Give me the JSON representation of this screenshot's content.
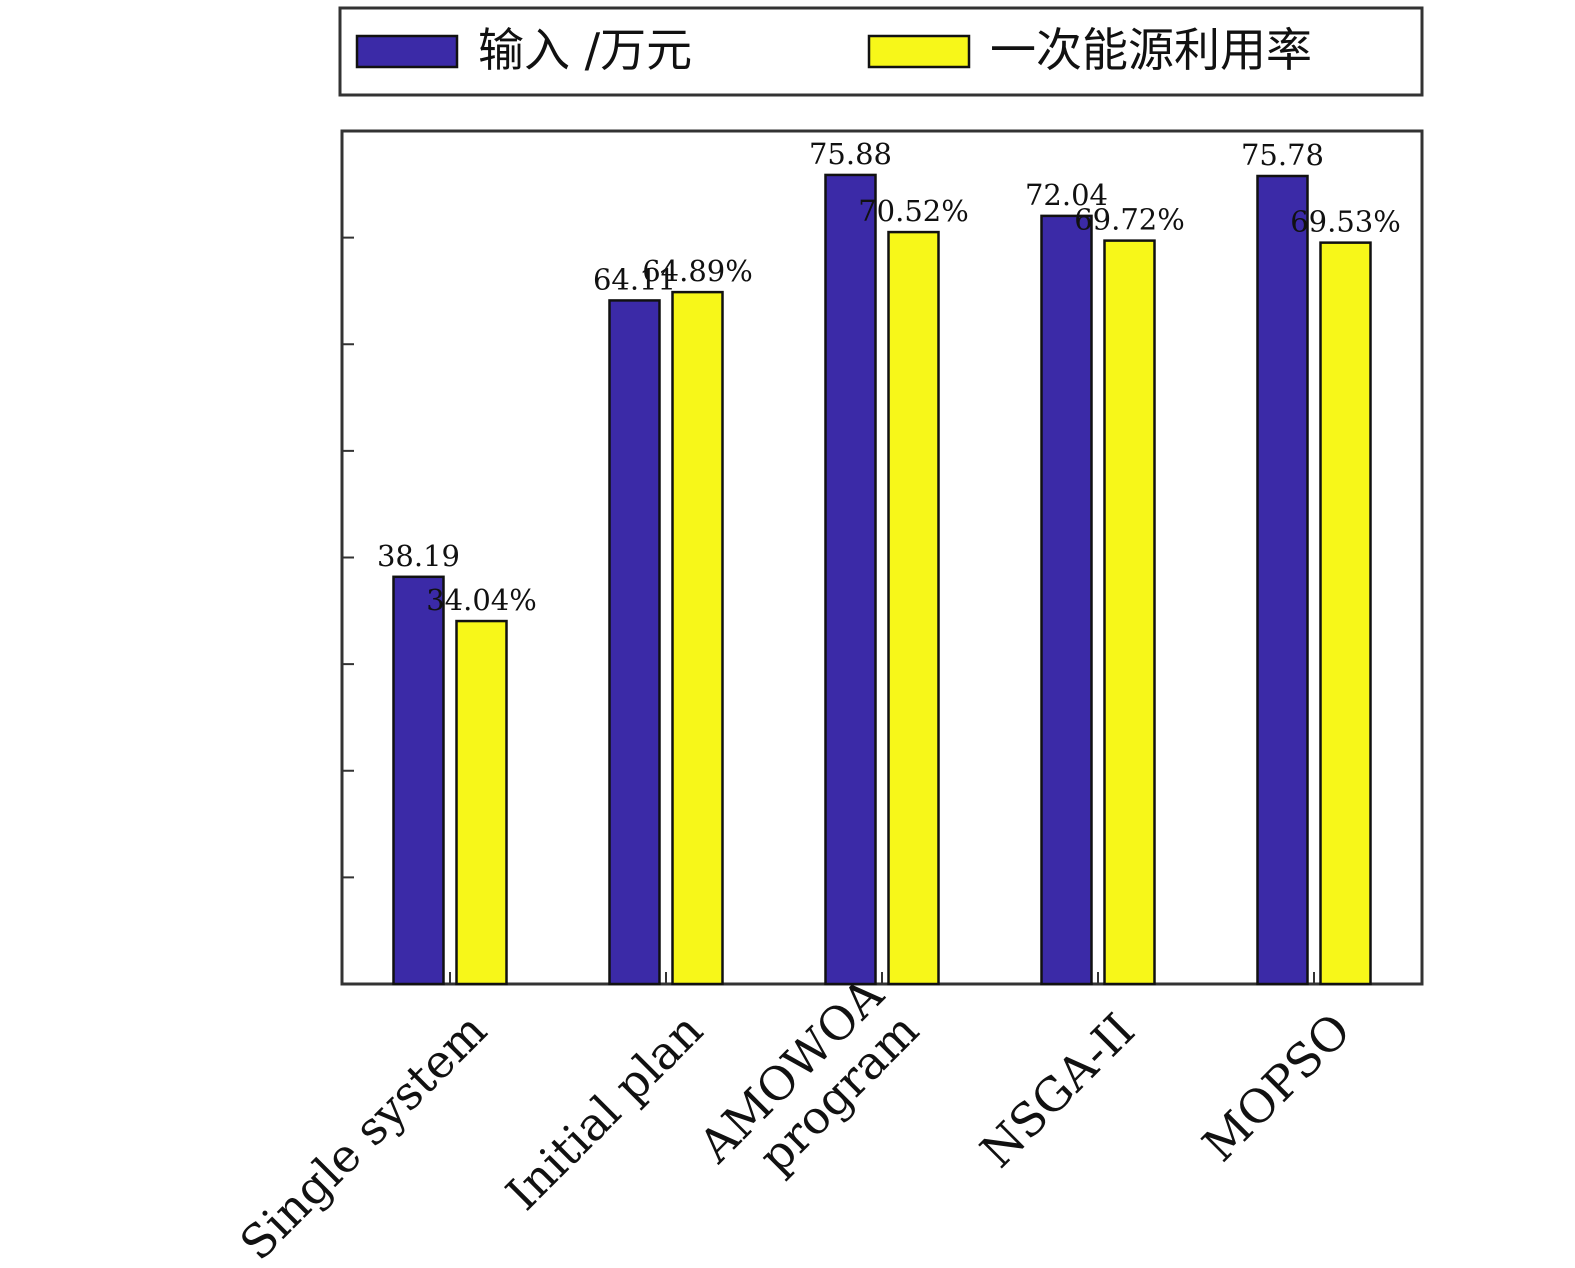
{
  "colors": {
    "input": "#3b2aa7",
    "efficiency": "#f7f719",
    "frame": "#333333"
  },
  "legend": {
    "input_label": "输入 /万元",
    "efficiency_label": "一次能源利用率"
  },
  "chart_data": {
    "type": "bar",
    "categories": [
      [
        "Single system"
      ],
      [
        "Initial plan"
      ],
      [
        "AMOWOA",
        "program"
      ],
      [
        "NSGA-II"
      ],
      [
        "MOPSO"
      ]
    ],
    "series": [
      {
        "name": "输入 /万元",
        "values": [
          38.19,
          64.11,
          75.88,
          72.04,
          75.78
        ],
        "labels": [
          "38.19",
          "64.11",
          "75.88",
          "72.04",
          "75.78"
        ]
      },
      {
        "name": "一次能源利用率",
        "values": [
          34.04,
          64.89,
          70.52,
          69.72,
          69.53
        ],
        "labels": [
          "34.04%",
          "64.89%",
          "70.52%",
          "69.72%",
          "69.53%"
        ]
      }
    ],
    "ylim": [
      0,
      80
    ],
    "yticks": [
      10,
      20,
      30,
      40,
      50,
      60,
      70
    ],
    "ytick_labels_shown": false,
    "grid": false,
    "legend_position": "top"
  }
}
